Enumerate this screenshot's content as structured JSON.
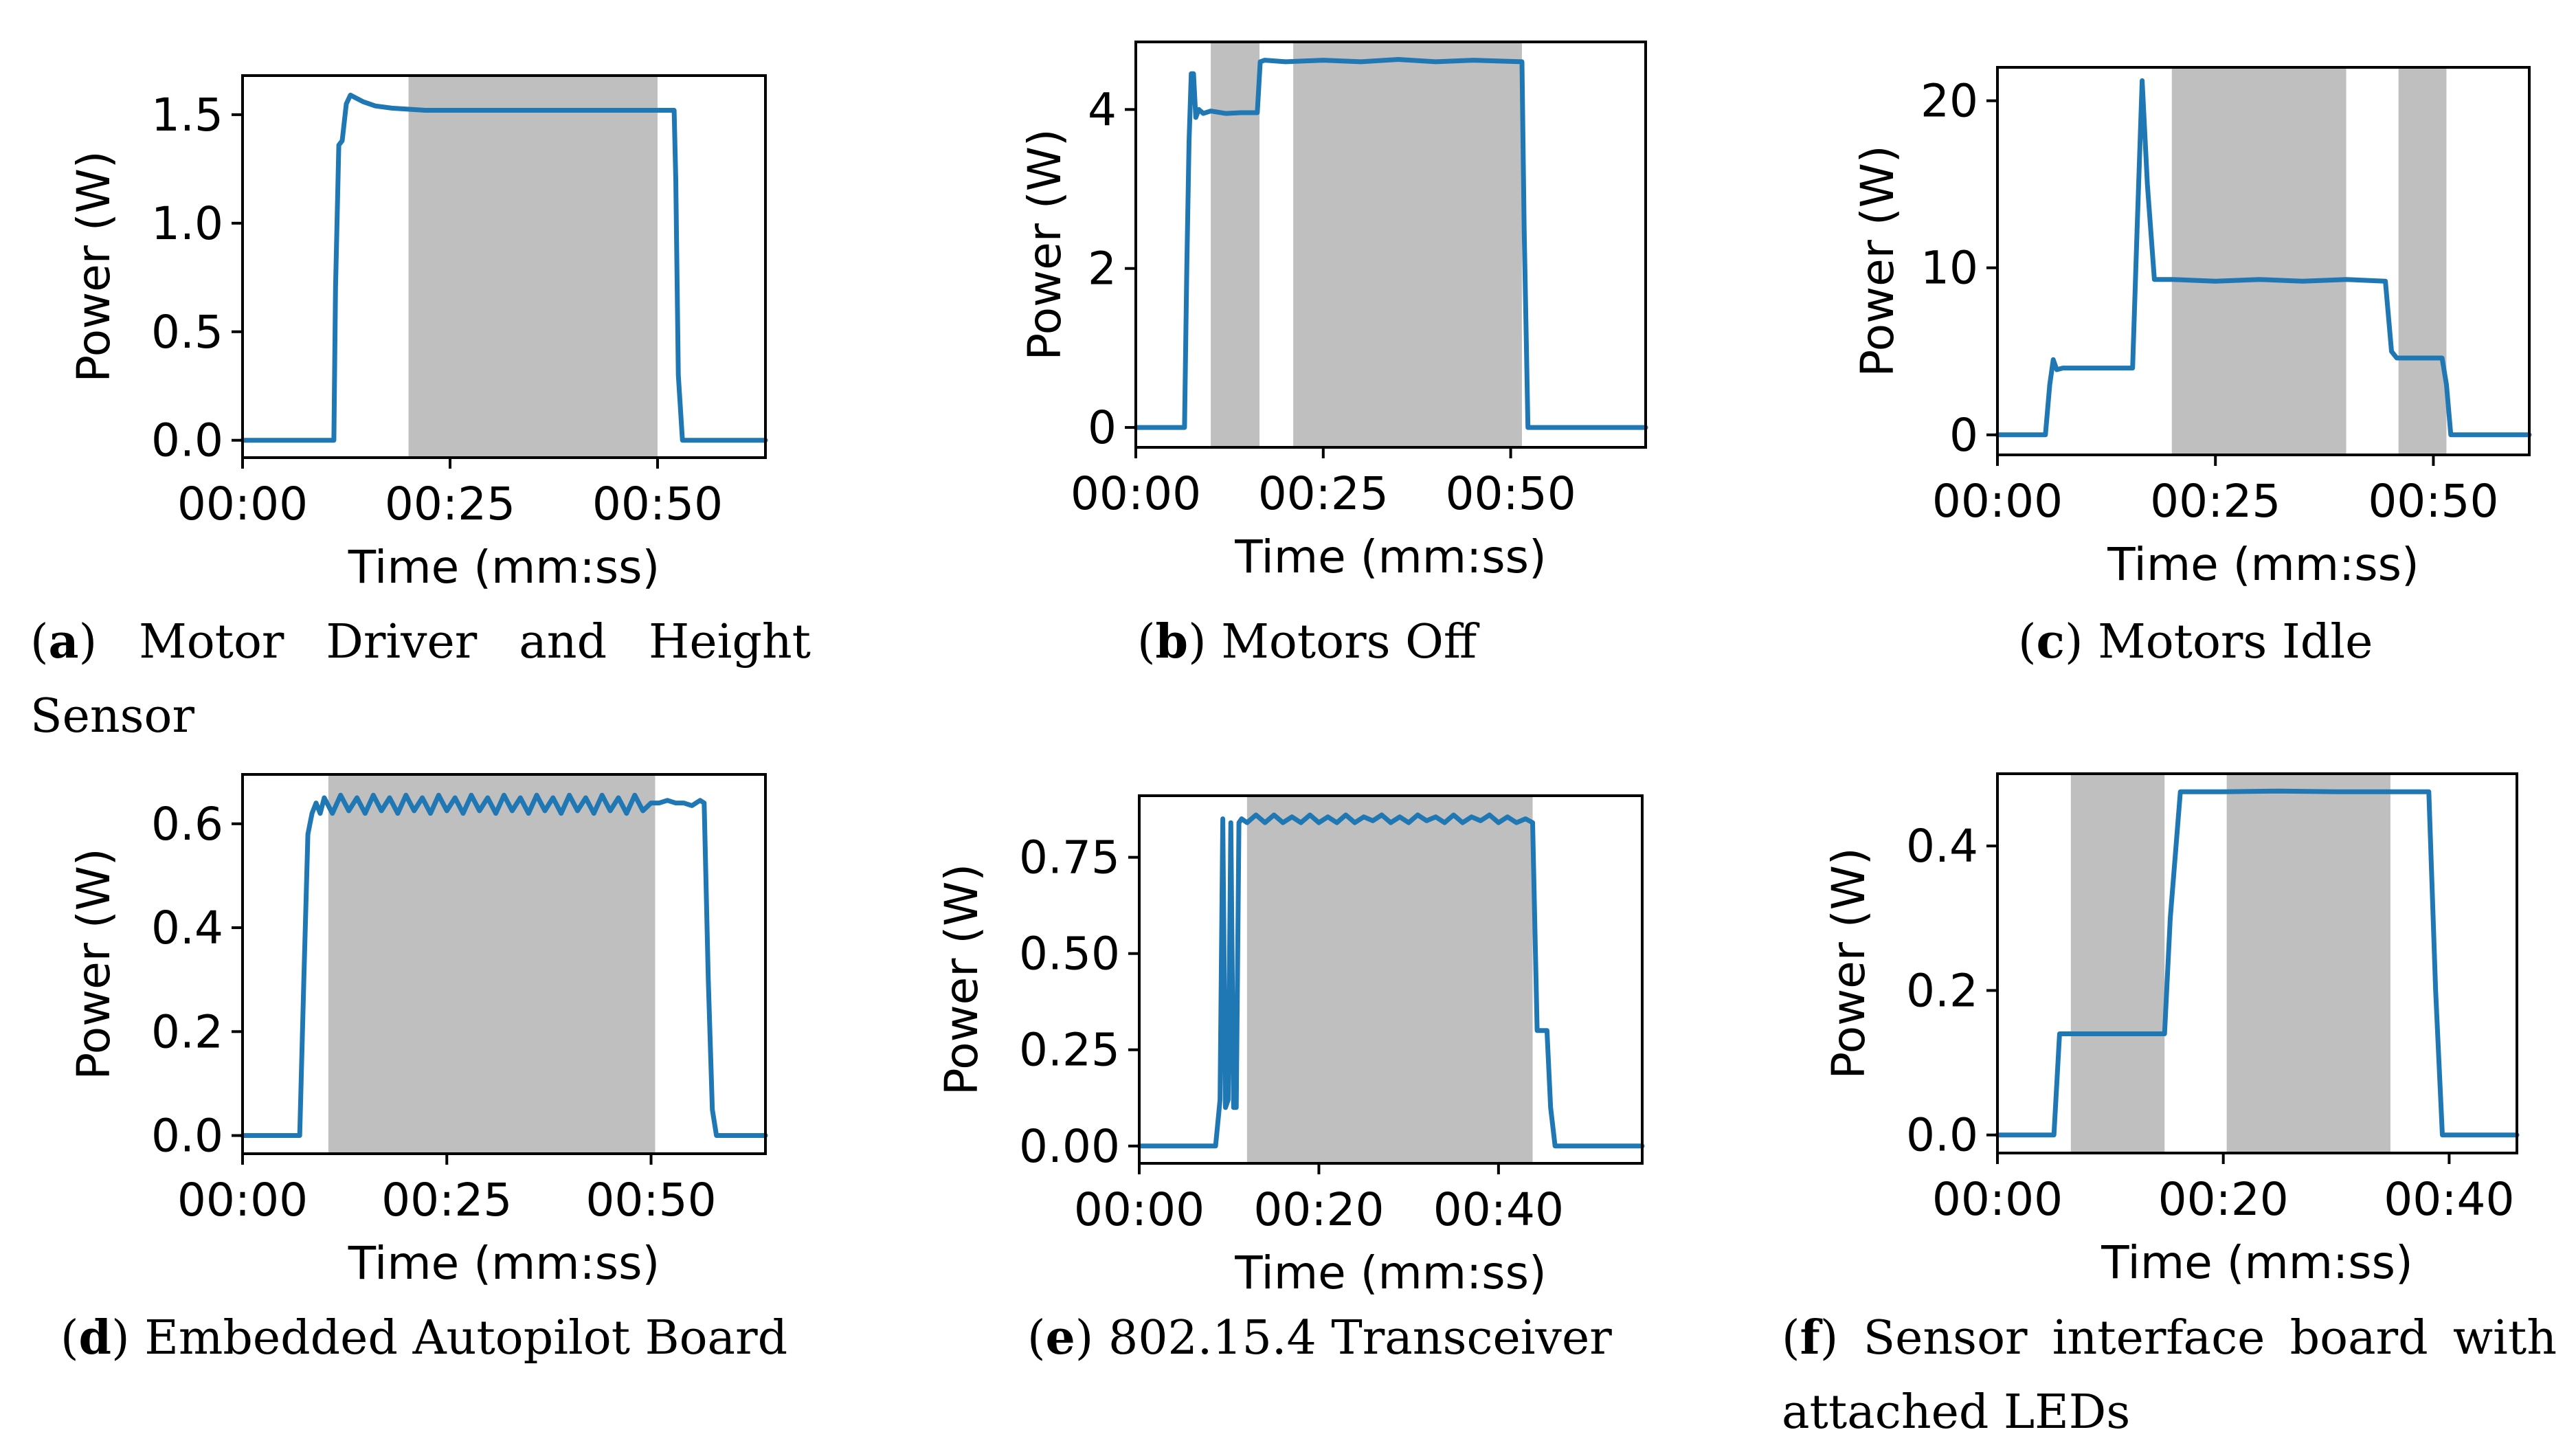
{
  "colors": {
    "line": "#1f77b4",
    "shade": "#bfbfbf",
    "axis": "#000000"
  },
  "chart_data": [
    {
      "id": "a",
      "type": "line",
      "caption_letter": "a",
      "caption_text": "Motor Driver and Height Sensor",
      "xlabel": "Time (mm:ss)",
      "ylabel": "Power (W)",
      "xlim": [
        0,
        63
      ],
      "ylim": [
        -0.08,
        1.68
      ],
      "xticks": [
        0,
        25,
        50
      ],
      "xtick_labels": [
        "00:00",
        "00:25",
        "00:50"
      ],
      "yticks": [
        0.0,
        0.5,
        1.0,
        1.5
      ],
      "ytick_labels": [
        "0.0",
        "0.5",
        "1.0",
        "1.5"
      ],
      "shaded_regions": [
        [
          20,
          50
        ]
      ],
      "series": [
        {
          "x": [
            0,
            11.0,
            11.2,
            11.6,
            12.0,
            12.5,
            13.0,
            13.5,
            14.5,
            16,
            18,
            22,
            30,
            40,
            48,
            52.0,
            52.2,
            52.5,
            53,
            63
          ],
          "y": [
            0.0,
            0.0,
            0.7,
            1.36,
            1.38,
            1.55,
            1.59,
            1.58,
            1.56,
            1.54,
            1.53,
            1.52,
            1.52,
            1.52,
            1.52,
            1.52,
            1.2,
            0.3,
            0.0,
            0.0
          ]
        }
      ]
    },
    {
      "id": "b",
      "type": "line",
      "caption_letter": "b",
      "caption_text": "Motors Off",
      "xlabel": "Time (mm:ss)",
      "ylabel": "Power (W)",
      "xlim": [
        0,
        68
      ],
      "ylim": [
        -0.25,
        4.85
      ],
      "xticks": [
        0,
        25,
        50
      ],
      "xtick_labels": [
        "00:00",
        "00:25",
        "00:50"
      ],
      "yticks": [
        0,
        2,
        4
      ],
      "ytick_labels": [
        "0",
        "2",
        "4"
      ],
      "shaded_regions": [
        [
          10,
          16.5
        ],
        [
          21,
          51.5
        ]
      ],
      "series": [
        {
          "x": [
            0,
            6.5,
            6.8,
            7.1,
            7.4,
            7.7,
            8.0,
            8.4,
            9,
            10,
            12,
            14,
            16.2,
            16.6,
            17.2,
            20,
            25,
            30,
            35,
            40,
            45,
            51.5,
            51.8,
            52.3,
            68
          ],
          "y": [
            0.0,
            0.0,
            2.0,
            3.6,
            4.45,
            4.45,
            3.9,
            4.0,
            3.95,
            3.98,
            3.95,
            3.96,
            3.96,
            4.6,
            4.62,
            4.6,
            4.62,
            4.6,
            4.63,
            4.6,
            4.62,
            4.6,
            2.5,
            0.0,
            0.0
          ]
        }
      ]
    },
    {
      "id": "c",
      "type": "line",
      "caption_letter": "c",
      "caption_text": "Motors Idle",
      "xlabel": "Time (mm:ss)",
      "ylabel": "Power (W)",
      "xlim": [
        0,
        61
      ],
      "ylim": [
        -1.2,
        22.0
      ],
      "xticks": [
        0,
        25,
        50
      ],
      "xtick_labels": [
        "00:00",
        "00:25",
        "00:50"
      ],
      "yticks": [
        0,
        10,
        20
      ],
      "ytick_labels": [
        "0",
        "10",
        "20"
      ],
      "shaded_regions": [
        [
          20,
          40
        ],
        [
          46,
          51.5
        ]
      ],
      "series": [
        {
          "x": [
            0,
            5.5,
            6.0,
            6.4,
            6.8,
            7.5,
            9,
            12,
            15.5,
            16.0,
            16.6,
            17.2,
            18.0,
            20,
            25,
            30,
            35,
            40,
            44.5,
            45.2,
            45.8,
            50,
            51.0,
            51.5,
            52.0,
            61
          ],
          "y": [
            0.0,
            0.0,
            3.0,
            4.5,
            3.9,
            4.0,
            4.0,
            4.0,
            4.0,
            12.0,
            21.2,
            15.0,
            9.3,
            9.3,
            9.2,
            9.3,
            9.2,
            9.3,
            9.2,
            5.0,
            4.6,
            4.6,
            4.6,
            3.0,
            0.0,
            0.0
          ]
        }
      ]
    },
    {
      "id": "d",
      "type": "line",
      "caption_letter": "d",
      "caption_text": "Embedded Autopilot Board",
      "xlabel": "Time (mm:ss)",
      "ylabel": "Power (W)",
      "xlim": [
        0,
        64
      ],
      "ylim": [
        -0.035,
        0.695
      ],
      "xticks": [
        0,
        25,
        50
      ],
      "xtick_labels": [
        "00:00",
        "00:25",
        "00:50"
      ],
      "yticks": [
        0.0,
        0.2,
        0.4,
        0.6
      ],
      "ytick_labels": [
        "0.0",
        "0.2",
        "0.4",
        "0.6"
      ],
      "shaded_regions": [
        [
          10.5,
          50.5
        ]
      ],
      "series": [
        {
          "x": [
            0,
            7.0,
            7.5,
            8.0,
            8.5,
            9.0,
            9.5,
            10.0,
            11,
            12,
            13,
            14,
            15,
            16,
            17,
            18,
            19,
            20,
            21,
            22,
            23,
            24,
            25,
            26,
            27,
            28,
            29,
            30,
            31,
            32,
            33,
            34,
            35,
            36,
            37,
            38,
            39,
            40,
            41,
            42,
            43,
            44,
            45,
            46,
            47,
            48,
            49,
            50,
            51,
            52,
            53,
            54,
            55,
            56,
            56.5,
            57.0,
            57.5,
            58.0,
            64
          ],
          "y": [
            0.0,
            0.0,
            0.3,
            0.58,
            0.62,
            0.64,
            0.62,
            0.65,
            0.62,
            0.655,
            0.625,
            0.65,
            0.62,
            0.655,
            0.625,
            0.65,
            0.62,
            0.655,
            0.625,
            0.65,
            0.62,
            0.655,
            0.625,
            0.65,
            0.62,
            0.655,
            0.625,
            0.65,
            0.62,
            0.655,
            0.625,
            0.65,
            0.62,
            0.655,
            0.625,
            0.65,
            0.62,
            0.655,
            0.625,
            0.65,
            0.62,
            0.655,
            0.625,
            0.65,
            0.62,
            0.655,
            0.625,
            0.64,
            0.64,
            0.645,
            0.64,
            0.64,
            0.635,
            0.645,
            0.64,
            0.3,
            0.05,
            0.0,
            0.0
          ]
        }
      ]
    },
    {
      "id": "e",
      "type": "line",
      "caption_letter": "e",
      "caption_text": "802.15.4 Transceiver",
      "xlabel": "Time (mm:ss)",
      "ylabel": "Power (W)",
      "xlim": [
        0,
        56
      ],
      "ylim": [
        -0.045,
        0.91
      ],
      "xticks": [
        0,
        20,
        40
      ],
      "xtick_labels": [
        "00:00",
        "00:20",
        "00:40"
      ],
      "yticks": [
        0.0,
        0.25,
        0.5,
        0.75
      ],
      "ytick_labels": [
        "0.00",
        "0.25",
        "0.50",
        "0.75"
      ],
      "shaded_regions": [
        [
          12,
          43.8
        ]
      ],
      "series": [
        {
          "x": [
            0,
            8.5,
            9.0,
            9.3,
            9.6,
            9.9,
            10.2,
            10.5,
            10.8,
            11.1,
            11.4,
            12,
            13,
            14,
            15,
            16,
            17,
            18,
            19,
            20,
            21,
            22,
            23,
            24,
            25,
            26,
            27,
            28,
            29,
            30,
            31,
            32,
            33,
            34,
            35,
            36,
            37,
            38,
            39,
            40,
            41,
            42,
            43,
            43.8,
            44.3,
            44.6,
            45.4,
            45.8,
            46.3,
            56
          ],
          "y": [
            0.0,
            0.0,
            0.12,
            0.85,
            0.1,
            0.12,
            0.84,
            0.1,
            0.1,
            0.84,
            0.85,
            0.84,
            0.86,
            0.84,
            0.86,
            0.84,
            0.855,
            0.84,
            0.86,
            0.84,
            0.855,
            0.84,
            0.86,
            0.84,
            0.855,
            0.845,
            0.86,
            0.84,
            0.855,
            0.84,
            0.86,
            0.845,
            0.855,
            0.84,
            0.86,
            0.84,
            0.855,
            0.845,
            0.86,
            0.84,
            0.855,
            0.84,
            0.85,
            0.84,
            0.3,
            0.3,
            0.3,
            0.1,
            0.0,
            0.0
          ]
        }
      ]
    },
    {
      "id": "f",
      "type": "line",
      "caption_letter": "f",
      "caption_text": "Sensor interface board with attached LEDs",
      "xlabel": "Time (mm:ss)",
      "ylabel": "Power (W)",
      "xlim": [
        0,
        46
      ],
      "ylim": [
        -0.025,
        0.5
      ],
      "xticks": [
        0,
        20,
        40
      ],
      "xtick_labels": [
        "00:00",
        "00:20",
        "00:40"
      ],
      "yticks": [
        0.0,
        0.2,
        0.4
      ],
      "ytick_labels": [
        "0.0",
        "0.2",
        "0.4"
      ],
      "shaded_regions": [
        [
          6.5,
          14.8
        ],
        [
          20.3,
          34.8
        ]
      ],
      "series": [
        {
          "x": [
            0,
            5.0,
            5.5,
            6.0,
            8,
            10,
            12,
            14.8,
            15.3,
            16.2,
            20,
            25,
            30,
            35,
            38.2,
            38.8,
            39.4,
            46
          ],
          "y": [
            0.0,
            0.0,
            0.14,
            0.14,
            0.14,
            0.14,
            0.14,
            0.14,
            0.3,
            0.475,
            0.475,
            0.476,
            0.475,
            0.475,
            0.475,
            0.2,
            0.0,
            0.0
          ]
        }
      ]
    }
  ]
}
